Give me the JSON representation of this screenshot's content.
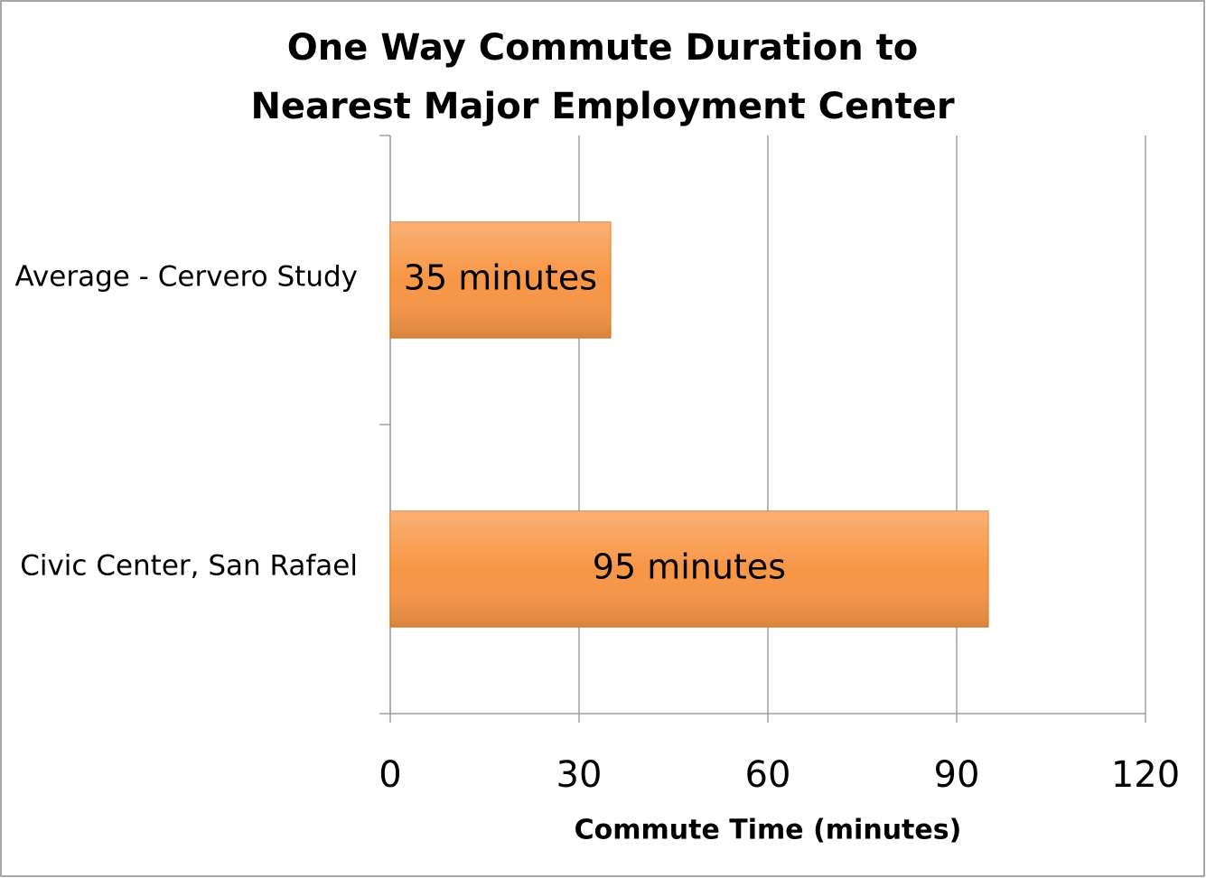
{
  "chart_data": {
    "type": "hbar",
    "title": [
      "One Way Commute Duration to",
      "Nearest Major Employment Center"
    ],
    "categories": [
      "Average - Cervero Study",
      "Civic Center, San Rafael"
    ],
    "values": [
      35,
      95
    ],
    "value_labels": [
      "35 minutes",
      "95 minutes"
    ],
    "color": "#f79646",
    "xlabel": "Commute Time (minutes)",
    "xlim": [
      0,
      120
    ],
    "xticks": [
      0,
      30,
      60,
      90,
      120
    ],
    "grid": true
  }
}
